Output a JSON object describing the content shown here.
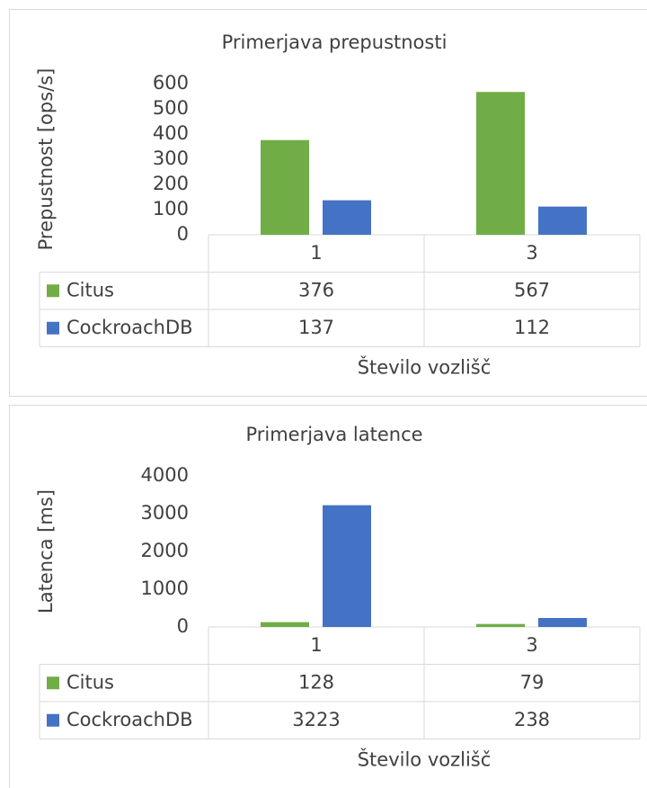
{
  "chart_data": [
    {
      "type": "bar",
      "title": "Primerjava prepustnosti",
      "x_label": "Število vozlišč",
      "y_label": "Prepustnost [ops/s]",
      "categories": [
        "1",
        "3"
      ],
      "series": [
        {
          "name": "Citus",
          "color": "#70ad47",
          "values": [
            376,
            567
          ]
        },
        {
          "name": "CockroachDB",
          "color": "#4472c4",
          "values": [
            137,
            112
          ]
        }
      ],
      "ylim": [
        0,
        600
      ],
      "yticks": [
        0,
        100,
        200,
        300,
        400,
        500,
        600
      ],
      "grid": false
    },
    {
      "type": "bar",
      "title": "Primerjava latence",
      "x_label": "Število vozlišč",
      "y_label": "Latenca [ms]",
      "categories": [
        "1",
        "3"
      ],
      "series": [
        {
          "name": "Citus",
          "color": "#70ad47",
          "values": [
            128,
            79
          ]
        },
        {
          "name": "CockroachDB",
          "color": "#4472c4",
          "values": [
            3223,
            238
          ]
        }
      ],
      "ylim": [
        0,
        4000
      ],
      "yticks": [
        0,
        1000,
        2000,
        3000,
        4000
      ],
      "grid": false
    }
  ]
}
